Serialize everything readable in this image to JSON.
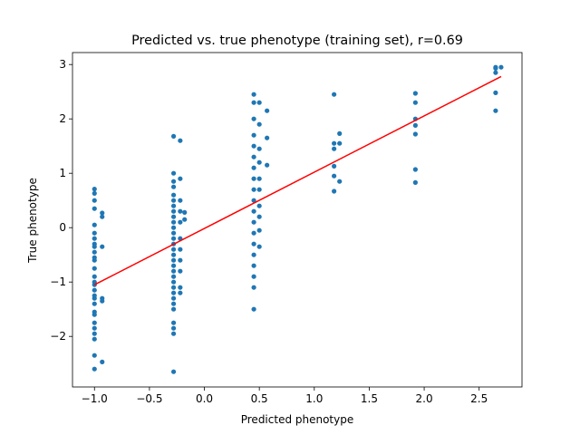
{
  "chart_data": {
    "type": "scatter",
    "title": "Predicted vs. true phenotype (training set), r=0.69",
    "xlabel": "Predicted phenotype",
    "ylabel": "True phenotype",
    "color": "#1f77b4",
    "x": [
      -1,
      -1,
      -1,
      -1,
      -1,
      -1,
      -1,
      -1,
      -1,
      -1,
      -1,
      -1,
      -1,
      -1,
      -1,
      -1,
      -1,
      -1,
      -1,
      -1,
      -1,
      -1,
      -1,
      -1,
      -1,
      -1,
      -1,
      -1,
      -0.93,
      -0.93,
      -0.93,
      -0.93,
      -0.93,
      -0.93,
      -0.28,
      -0.28,
      -0.28,
      -0.28,
      -0.28,
      -0.28,
      -0.28,
      -0.28,
      -0.28,
      -0.28,
      -0.28,
      -0.28,
      -0.28,
      -0.28,
      -0.28,
      -0.28,
      -0.28,
      -0.28,
      -0.28,
      -0.28,
      -0.28,
      -0.28,
      -0.28,
      -0.28,
      -0.28,
      -0.28,
      -0.28,
      -0.28,
      -0.28,
      -0.28,
      -0.22,
      -0.22,
      -0.22,
      -0.22,
      -0.22,
      -0.22,
      -0.22,
      -0.22,
      -0.22,
      -0.22,
      -0.22,
      -0.18,
      -0.18,
      0.45,
      0.45,
      0.45,
      0.45,
      0.45,
      0.45,
      0.45,
      0.45,
      0.45,
      0.45,
      0.45,
      0.45,
      0.45,
      0.45,
      0.45,
      0.45,
      0.45,
      0.45,
      0.45,
      0.5,
      0.5,
      0.5,
      0.5,
      0.5,
      0.5,
      0.5,
      0.5,
      0.5,
      0.5,
      0.57,
      0.57,
      0.57,
      1.18,
      1.18,
      1.18,
      1.18,
      1.18,
      1.18,
      1.23,
      1.23,
      1.23,
      1.92,
      1.92,
      1.92,
      1.92,
      1.92,
      1.92,
      1.92,
      2.65,
      2.65,
      2.65,
      2.65,
      2.65,
      2.7
    ],
    "values": [
      0.71,
      0.63,
      0.5,
      0.35,
      0.05,
      -0.3,
      -0.35,
      -0.55,
      -0.6,
      -0.75,
      -0.9,
      -1.0,
      -1.05,
      -1.15,
      -1.3,
      -1.4,
      -1.55,
      -1.6,
      -1.75,
      -1.85,
      -1.95,
      -2.05,
      -2.35,
      -2.6,
      -0.1,
      -0.2,
      -0.45,
      -1.25,
      0.27,
      0.2,
      -0.35,
      -1.3,
      -1.35,
      -2.47,
      1.68,
      1.0,
      0.85,
      0.75,
      0.6,
      0.5,
      0.4,
      0.3,
      0.2,
      0.1,
      0,
      -0.1,
      -0.2,
      -0.3,
      -0.4,
      -0.5,
      -0.6,
      -0.7,
      -0.8,
      -0.9,
      -1.0,
      -1.1,
      -1.2,
      -1.3,
      -1.4,
      -1.5,
      -1.75,
      -1.85,
      -1.95,
      -2.65,
      1.6,
      0.9,
      0.5,
      0.3,
      0.1,
      -0.2,
      -0.4,
      -0.6,
      -0.8,
      -1.1,
      -1.2,
      0.28,
      0.15,
      2.45,
      2.3,
      2.0,
      1.7,
      1.5,
      1.3,
      1.1,
      0.9,
      0.7,
      0.5,
      0.3,
      0.1,
      -0.1,
      -0.3,
      -0.5,
      -0.7,
      -0.9,
      -1.1,
      -1.5,
      2.3,
      1.9,
      1.45,
      1.2,
      0.9,
      0.7,
      0.4,
      0.2,
      -0.05,
      -0.35,
      2.15,
      1.65,
      1.15,
      2.45,
      1.55,
      1.45,
      1.13,
      0.95,
      0.67,
      1.73,
      1.55,
      0.85,
      2.47,
      2.3,
      2.0,
      1.88,
      1.72,
      1.07,
      0.83,
      2.95,
      2.93,
      2.85,
      2.48,
      2.15,
      2.95
    ],
    "fit_line": {
      "x": [
        -1,
        2.7
      ],
      "values": [
        -1.05,
        2.78
      ],
      "color": "#ff0000"
    },
    "xlim": [
      -1.2,
      2.89
    ],
    "ylim": [
      -2.93,
      3.22
    ],
    "xticks": [
      {
        "value": -1,
        "label": "−1.0"
      },
      {
        "value": -0.5,
        "label": "−0.5"
      },
      {
        "value": 0,
        "label": "0.0"
      },
      0.5,
      {
        "value": 1,
        "label": "1.0"
      },
      1.5,
      {
        "value": 2,
        "label": "2.0"
      },
      2.5
    ],
    "yticks": [
      {
        "value": -2,
        "label": "−2"
      },
      {
        "value": -1,
        "label": "−1"
      },
      0,
      1,
      2,
      3
    ]
  }
}
